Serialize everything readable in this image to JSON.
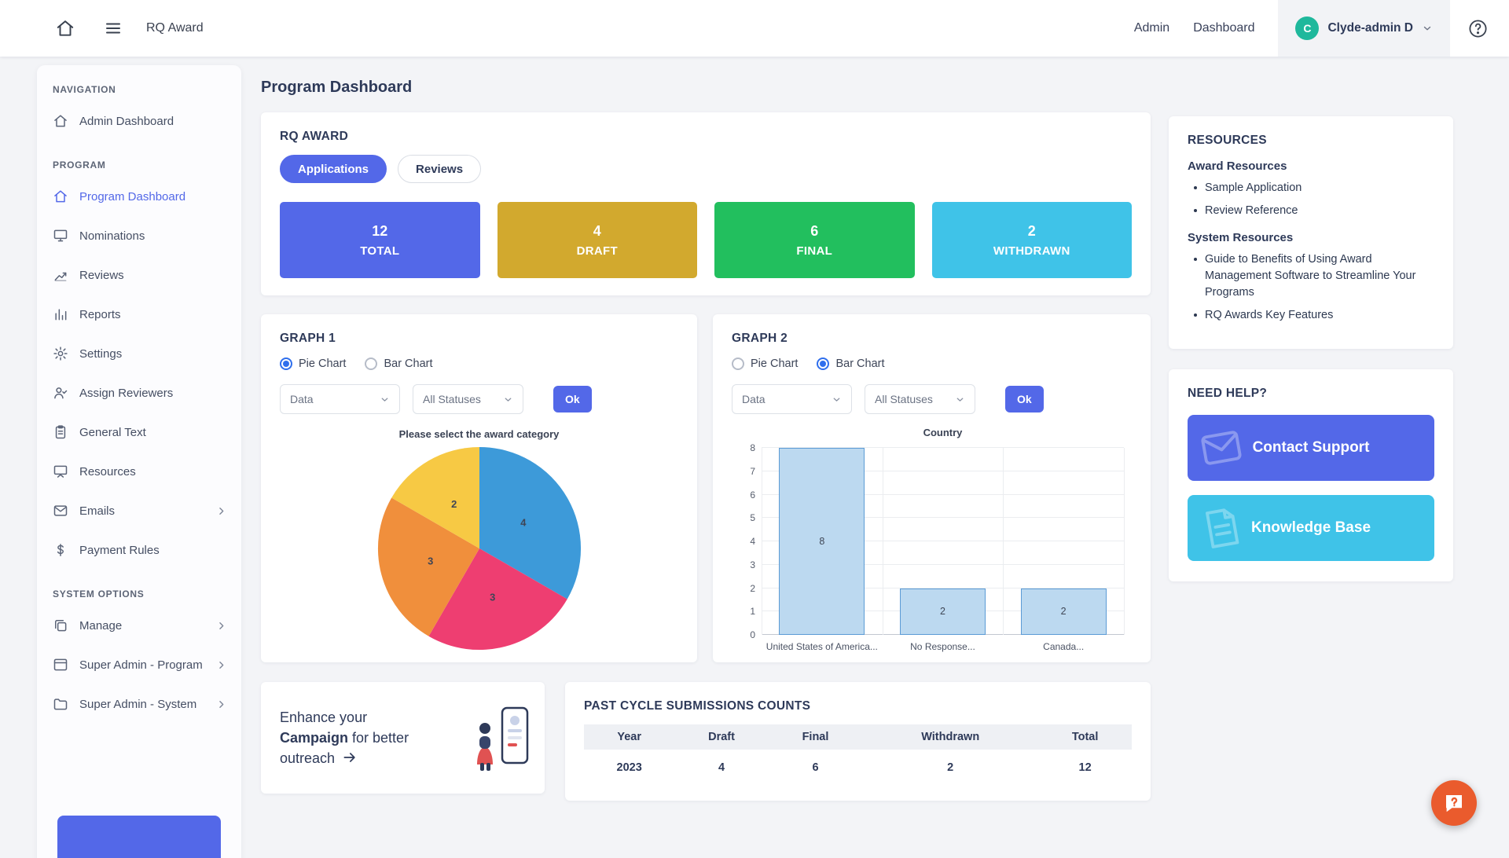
{
  "colors": {
    "indigo": "#5368e8",
    "gold": "#d2a92e",
    "green": "#22bf5e",
    "cyan": "#3fc3e8",
    "orange": "#ea5b2d",
    "teal": "#1fb89c",
    "navy": "#2e3a59"
  },
  "topbar": {
    "title": "RQ Award",
    "links": [
      {
        "label": "Admin"
      },
      {
        "label": "Dashboard"
      }
    ],
    "user": {
      "initial": "C",
      "name": "Clyde-admin D"
    }
  },
  "sidebar": {
    "headers": {
      "navigation": "NAVIGATION",
      "program": "PROGRAM",
      "system": "SYSTEM OPTIONS"
    },
    "items": [
      {
        "label": "Admin Dashboard"
      },
      {
        "label": "Program Dashboard"
      },
      {
        "label": "Nominations"
      },
      {
        "label": "Reviews"
      },
      {
        "label": "Reports"
      },
      {
        "label": "Settings"
      },
      {
        "label": "Assign Reviewers"
      },
      {
        "label": "General Text"
      },
      {
        "label": "Resources"
      },
      {
        "label": "Emails"
      },
      {
        "label": "Payment Rules"
      },
      {
        "label": "Manage"
      },
      {
        "label": "Super Admin - Program"
      },
      {
        "label": "Super Admin - System"
      }
    ]
  },
  "main": {
    "page_title": "Program Dashboard",
    "award_card": {
      "title": "RQ AWARD",
      "tabs": {
        "applications": "Applications",
        "reviews": "Reviews"
      },
      "stats": [
        {
          "value": "12",
          "label": "TOTAL",
          "color": "#5368e8"
        },
        {
          "value": "4",
          "label": "DRAFT",
          "color": "#d2a92e"
        },
        {
          "value": "6",
          "label": "FINAL",
          "color": "#22bf5e"
        },
        {
          "value": "2",
          "label": "WITHDRAWN",
          "color": "#3fc3e8"
        }
      ]
    },
    "graph1": {
      "title": "GRAPH 1",
      "radio_pie": "Pie Chart",
      "radio_bar": "Bar Chart",
      "selected": "Pie Chart",
      "select_data": "Data",
      "select_status": "All Statuses",
      "ok": "Ok",
      "hint": "Please select the award category"
    },
    "graph2": {
      "title": "GRAPH 2",
      "radio_pie": "Pie Chart",
      "radio_bar": "Bar Chart",
      "selected": "Bar Chart",
      "select_data": "Data",
      "select_status": "All Statuses",
      "ok": "Ok"
    },
    "campaign": {
      "pre": "Enhance your",
      "bold": "Campaign",
      "mid": "for better",
      "last": "outreach"
    },
    "past_cycle": {
      "title": "PAST CYCLE SUBMISSIONS COUNTS",
      "columns": [
        "Year",
        "Draft",
        "Final",
        "Withdrawn",
        "Total"
      ],
      "rows": [
        [
          "2023",
          "4",
          "6",
          "2",
          "12"
        ]
      ]
    }
  },
  "chart_data": [
    {
      "type": "pie",
      "title": "GRAPH 1",
      "labels": [
        "4",
        "3",
        "3",
        "2"
      ],
      "values": [
        4,
        3,
        3,
        2
      ],
      "colors": [
        "#3d9ad9",
        "#ee3e71",
        "#f08f3c",
        "#f7c944"
      ],
      "legend": "none",
      "note": "Please select the award category"
    },
    {
      "type": "bar",
      "title": "Country",
      "categories": [
        "United States of America...",
        "No Response...",
        "Canada..."
      ],
      "values": [
        8,
        2,
        2
      ],
      "ylim": [
        0,
        8
      ],
      "ytick_step": 1,
      "grid": "on",
      "bar_fill": "#bcd9f0",
      "bar_border": "#5b9bd5"
    }
  ],
  "resources": {
    "title": "RESOURCES",
    "award_heading": "Award Resources",
    "award_links": [
      "Sample Application",
      "Review Reference"
    ],
    "system_heading": "System Resources",
    "system_links": [
      "Guide to Benefits of Using Award Management Software to Streamline Your Programs",
      "RQ Awards Key Features"
    ]
  },
  "help": {
    "title": "NEED HELP?",
    "contact": "Contact Support",
    "kb": "Knowledge Base"
  }
}
